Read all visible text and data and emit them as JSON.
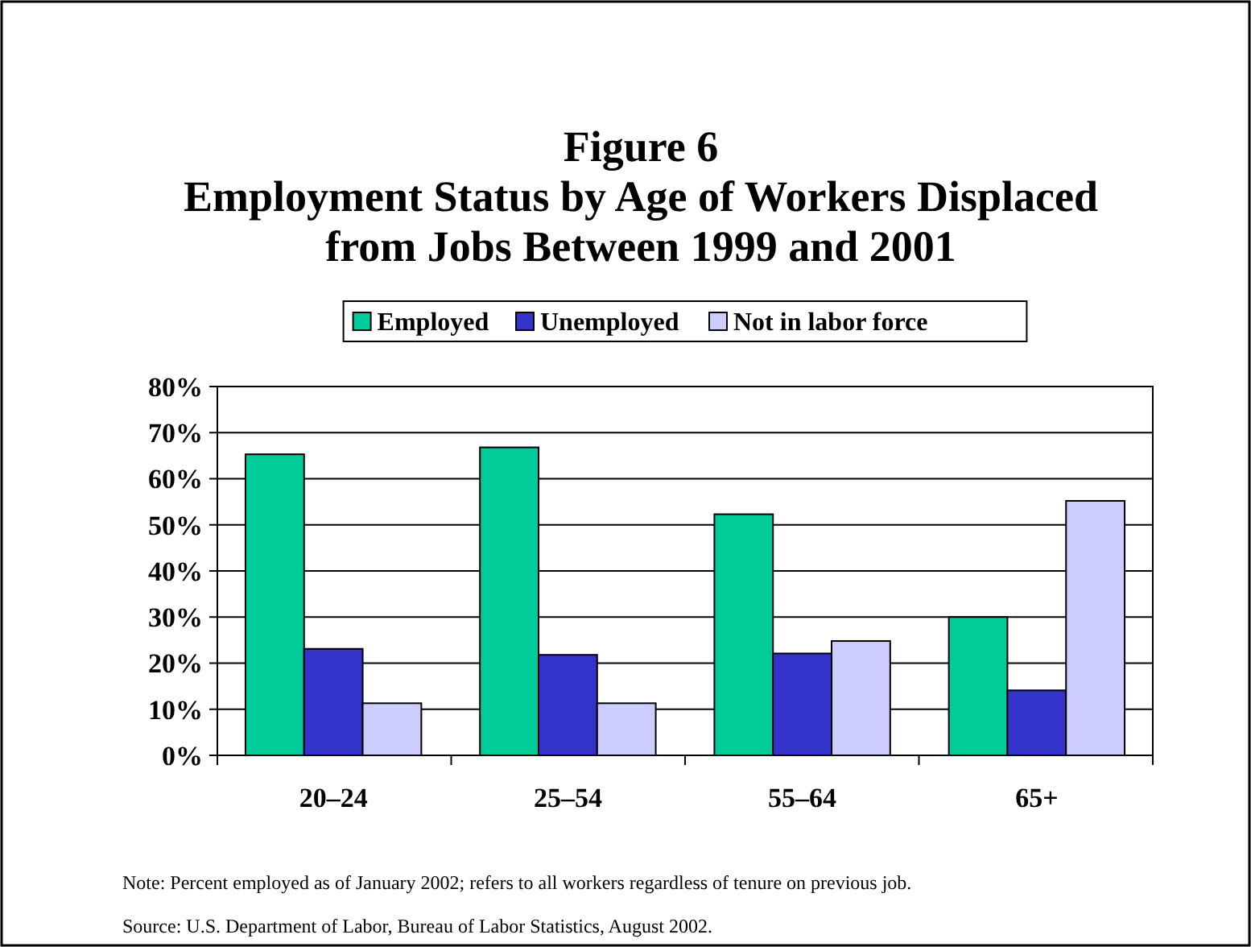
{
  "chart_data": {
    "type": "bar",
    "title": "Figure 6\nEmployment Status by Age of Workers Displaced\nfrom Jobs Between 1999 and 2001",
    "categories": [
      "20–24",
      "25–54",
      "55–64",
      "65+"
    ],
    "series": [
      {
        "name": "Employed",
        "color": "#00cc99",
        "values": [
          65.3,
          66.8,
          52.3,
          30.0
        ]
      },
      {
        "name": "Unemployed",
        "color": "#3333cc",
        "values": [
          23.1,
          21.8,
          22.1,
          14.1
        ]
      },
      {
        "name": "Not in labor force",
        "color": "#ccccff",
        "values": [
          11.3,
          11.3,
          24.8,
          55.2
        ]
      }
    ],
    "ylim": [
      0,
      80
    ],
    "yticks": [
      {
        "value": 0,
        "label": "0%"
      },
      {
        "value": 10,
        "label": "10%"
      },
      {
        "value": 20,
        "label": "20%"
      },
      {
        "value": 30,
        "label": "30%"
      },
      {
        "value": 40,
        "label": "40%"
      },
      {
        "value": 50,
        "label": "50%"
      },
      {
        "value": 60,
        "label": "60%"
      },
      {
        "value": 70,
        "label": "70%"
      },
      {
        "value": 80,
        "label": "80%"
      }
    ],
    "grid": "y",
    "legend": "top",
    "annotations": [
      "Note: Percent employed as of January 2002; refers to all workers regardless of tenure on previous job.",
      "Source: U.S. Department of Labor, Bureau of Labor Statistics, August 2002."
    ]
  }
}
